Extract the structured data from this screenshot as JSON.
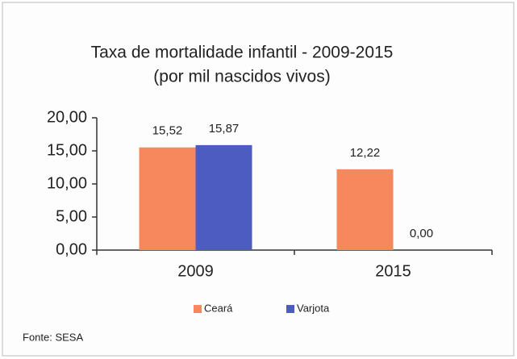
{
  "chart_data": {
    "type": "bar",
    "title": "Taxa de mortalidade infantil - 2009-2015",
    "subtitle": "(por mil nascidos vivos)",
    "categories": [
      "2009",
      "2015"
    ],
    "series": [
      {
        "name": "Ceará",
        "color": "#f7875c",
        "values": [
          15.52,
          12.22
        ],
        "value_labels": [
          "15,52",
          "12,22"
        ]
      },
      {
        "name": "Varjota",
        "color": "#4d5cc0",
        "values": [
          15.87,
          0
        ],
        "value_labels": [
          "15,87",
          "0,00"
        ]
      }
    ],
    "ylim": [
      0,
      20
    ],
    "yticks": [
      {
        "value": 0,
        "label": "0,00"
      },
      {
        "value": 5,
        "label": "5,00"
      },
      {
        "value": 10,
        "label": "10,00"
      },
      {
        "value": 15,
        "label": "15,00"
      },
      {
        "value": 20,
        "label": "20,00"
      }
    ],
    "legend": "bottom",
    "source": "Fonte: SESA"
  }
}
